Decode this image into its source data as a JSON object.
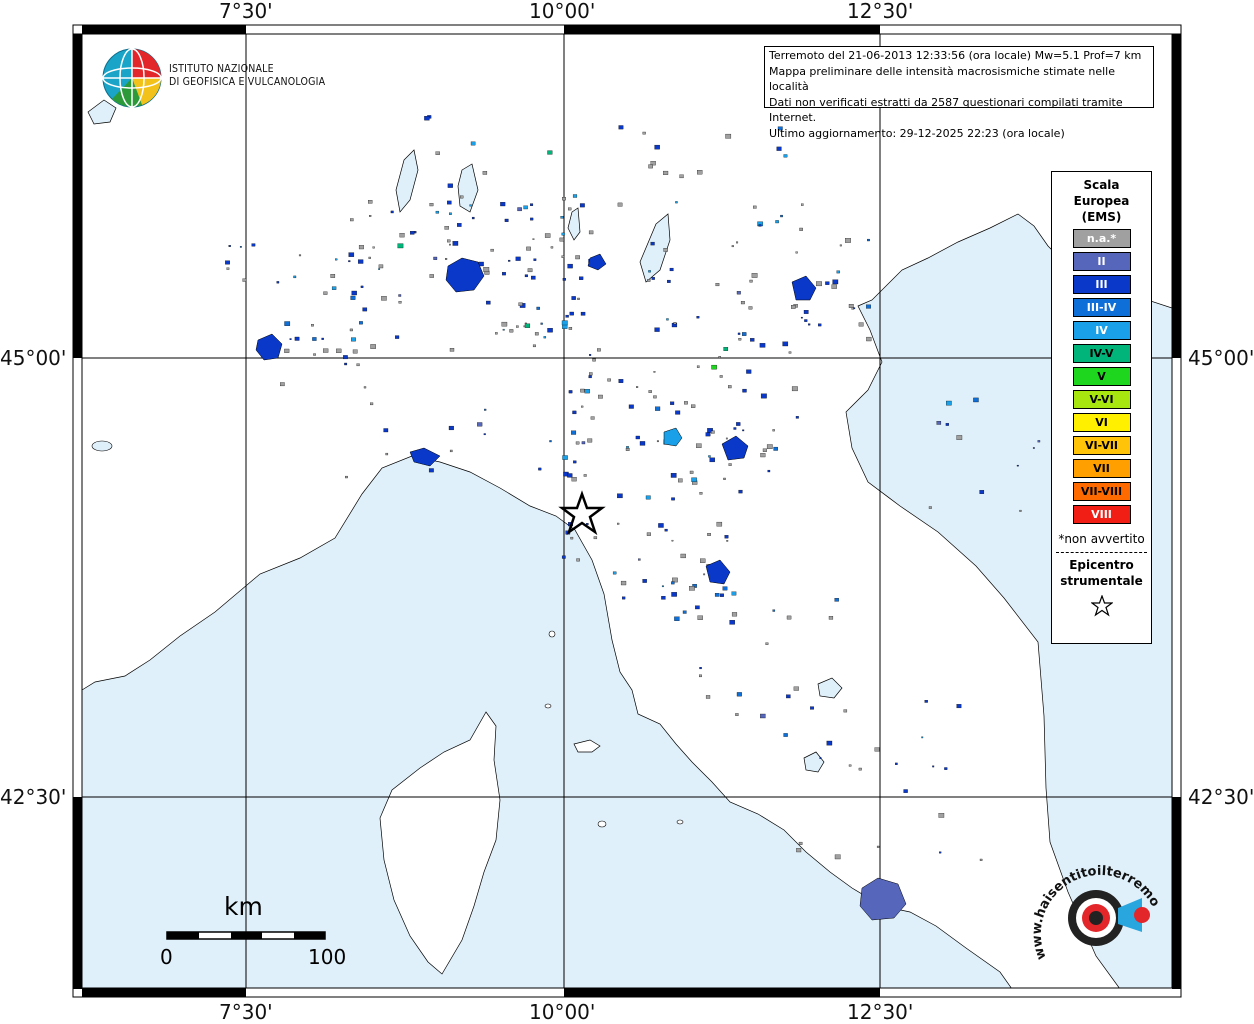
{
  "map": {
    "top_labels": [
      "7°30'",
      "10°00'",
      "12°30'"
    ],
    "bottom_labels": [
      "7°30'",
      "10°00'",
      "12°30'"
    ],
    "left_labels": [
      "45°00'",
      "42°30'"
    ],
    "right_labels": [
      "45°00'",
      "42°30'"
    ],
    "colors": {
      "sea": "#e0f0fa",
      "land": "#ffffff",
      "grid": "#000000"
    }
  },
  "institute": {
    "line1": "ISTITUTO NAZIONALE",
    "line2": "DI GEOFISICA E VULCANOLOGIA"
  },
  "info": {
    "line1": "Terremoto del 21-06-2013 12:33:56 (ora locale) Mw=5.1 Prof=7 km",
    "line2": "Mappa preliminare delle intensità macrosismiche stimate nelle località",
    "line3": "Dati non verificati estratti da 2587 questionari compilati tramite Internet.",
    "line4": "Ultimo aggiornamento: 29-12-2025 22:23 (ora locale)"
  },
  "legend": {
    "title1": "Scala",
    "title2": "Europea",
    "title3": "(EMS)",
    "items": [
      {
        "label": "n.a.*",
        "color": "#a0a0a0",
        "text_color": "#ffffff"
      },
      {
        "label": "II",
        "color": "#5566bb",
        "text_color": "#ffffff"
      },
      {
        "label": "III",
        "color": "#0a38c8",
        "text_color": "#ffffff"
      },
      {
        "label": "III-IV",
        "color": "#0f6fd8",
        "text_color": "#ffffff"
      },
      {
        "label": "IV",
        "color": "#19a0e8",
        "text_color": "#ffffff"
      },
      {
        "label": "IV-V",
        "color": "#00b47a",
        "text_color": "#000000"
      },
      {
        "label": "V",
        "color": "#1ed61e",
        "text_color": "#000000"
      },
      {
        "label": "V-VI",
        "color": "#a8e60f",
        "text_color": "#000000"
      },
      {
        "label": "VI",
        "color": "#fff000",
        "text_color": "#000000"
      },
      {
        "label": "VI-VII",
        "color": "#ffc40a",
        "text_color": "#000000"
      },
      {
        "label": "VII",
        "color": "#ffa000",
        "text_color": "#000000"
      },
      {
        "label": "VII-VIII",
        "color": "#ff6a00",
        "text_color": "#000000"
      },
      {
        "label": "VIII",
        "color": "#f01e14",
        "text_color": "#ffffff"
      }
    ],
    "note": "*non avvertito",
    "epi1": "Epicentro",
    "epi2": "strumentale"
  },
  "scale": {
    "unit": "km",
    "start": "0",
    "end": "100"
  },
  "logo_text": "www.haisentitoilterremoto.it"
}
